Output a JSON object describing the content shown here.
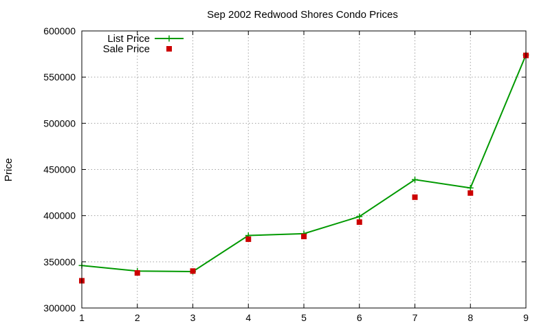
{
  "chart_data": {
    "type": "line",
    "title": "Sep 2002 Redwood Shores Condo Prices",
    "xlabel": "",
    "ylabel": "Price",
    "xlim": [
      1,
      9
    ],
    "ylim": [
      300000,
      600000
    ],
    "x_ticks": [
      "1",
      "2",
      "3",
      "4",
      "5",
      "6",
      "7",
      "8",
      "9"
    ],
    "y_ticks": [
      "300000",
      "350000",
      "400000",
      "450000",
      "500000",
      "550000",
      "600000"
    ],
    "grid": true,
    "legend_position": "top-left",
    "x": [
      1,
      2,
      3,
      4,
      5,
      6,
      7,
      8,
      9
    ],
    "series": [
      {
        "name": "List Price",
        "style": "linespoints",
        "marker": "plus",
        "color": "#009900",
        "values": [
          346000,
          340000,
          339500,
          378500,
          380500,
          399000,
          439000,
          430000,
          574000
        ]
      },
      {
        "name": "Sale Price",
        "style": "points",
        "marker": "square",
        "color": "#cc0000",
        "values": [
          329500,
          338000,
          340000,
          374500,
          377500,
          393000,
          420000,
          424500,
          573500
        ]
      }
    ]
  }
}
